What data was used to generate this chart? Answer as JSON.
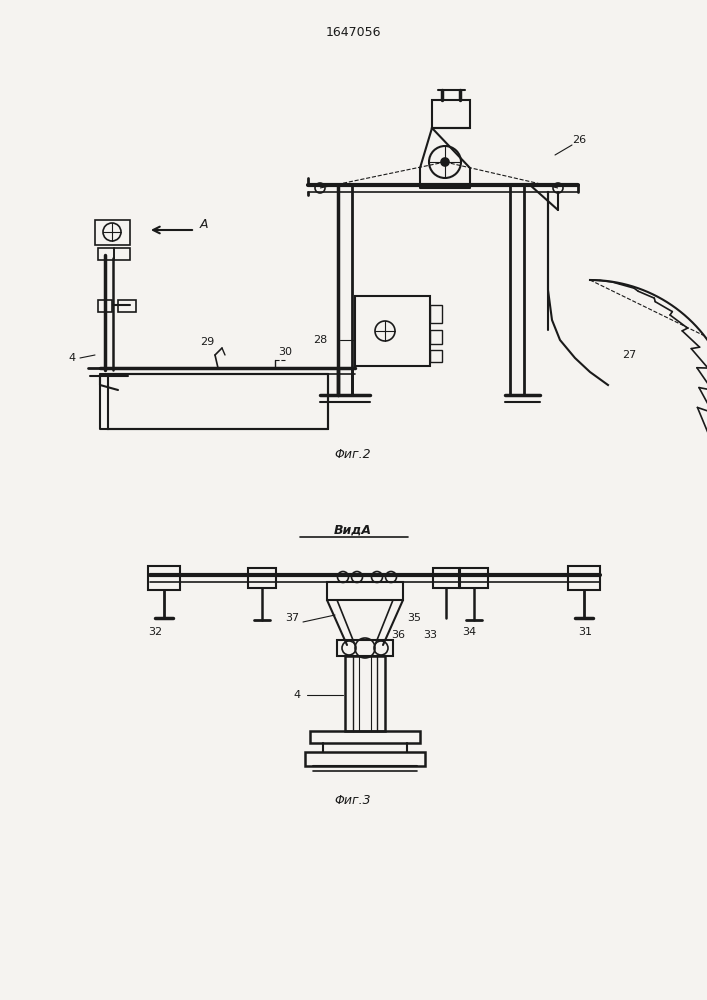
{
  "patent_number": "1647056",
  "fig2_caption": "Φиг.2",
  "fig3_caption": "Φиг.3",
  "view_label": "ВидA",
  "bg_color": "#f5f3f0",
  "line_color": "#1a1a1a"
}
